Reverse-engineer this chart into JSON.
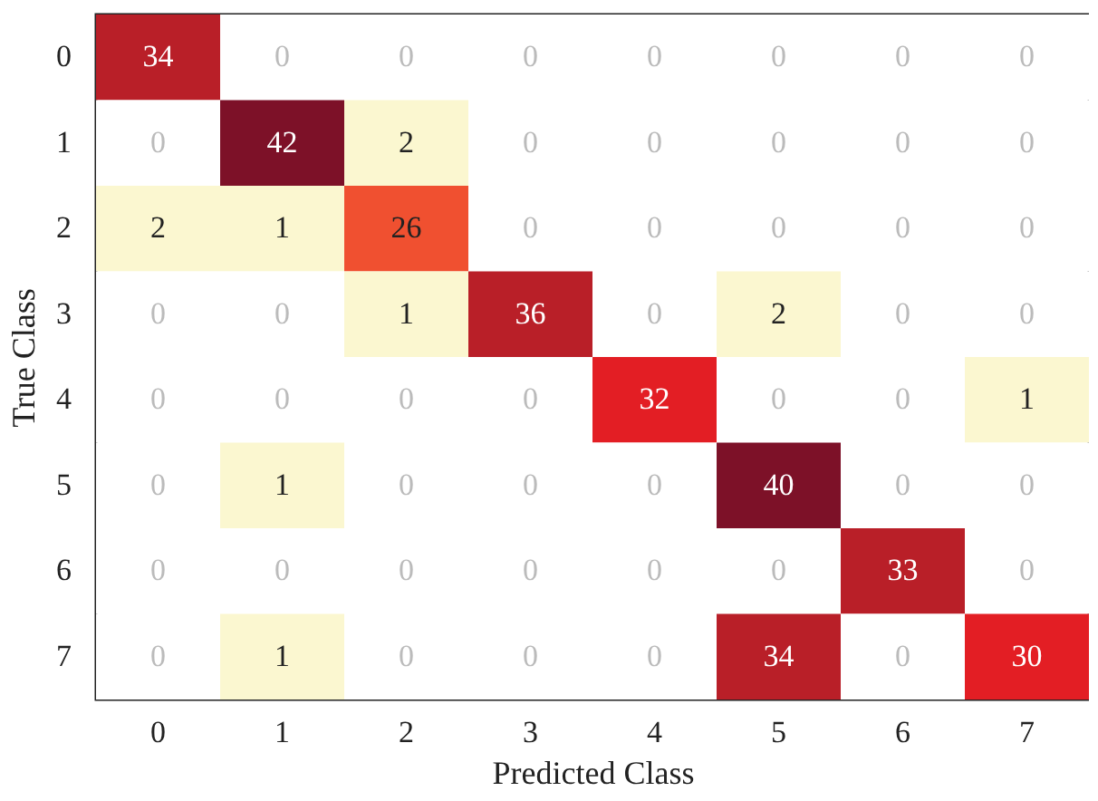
{
  "chart_data": {
    "type": "heatmap",
    "xlabel": "Predicted Class",
    "ylabel": "True Class",
    "categories": [
      "0",
      "1",
      "2",
      "3",
      "4",
      "5",
      "6",
      "7"
    ],
    "y_categories": [
      "0",
      "1",
      "2",
      "3",
      "4",
      "5",
      "6",
      "7"
    ],
    "cells": [
      [
        34,
        0,
        0,
        0,
        0,
        0,
        0,
        0
      ],
      [
        0,
        42,
        2,
        0,
        0,
        0,
        0,
        0
      ],
      [
        2,
        1,
        26,
        0,
        0,
        0,
        0,
        0
      ],
      [
        0,
        0,
        1,
        36,
        0,
        2,
        0,
        0
      ],
      [
        0,
        0,
        0,
        0,
        32,
        0,
        0,
        1
      ],
      [
        0,
        1,
        0,
        0,
        0,
        40,
        0,
        0
      ],
      [
        0,
        0,
        0,
        0,
        0,
        0,
        33,
        0
      ],
      [
        0,
        1,
        0,
        0,
        0,
        34,
        0,
        30
      ]
    ],
    "data_labels": true
  }
}
